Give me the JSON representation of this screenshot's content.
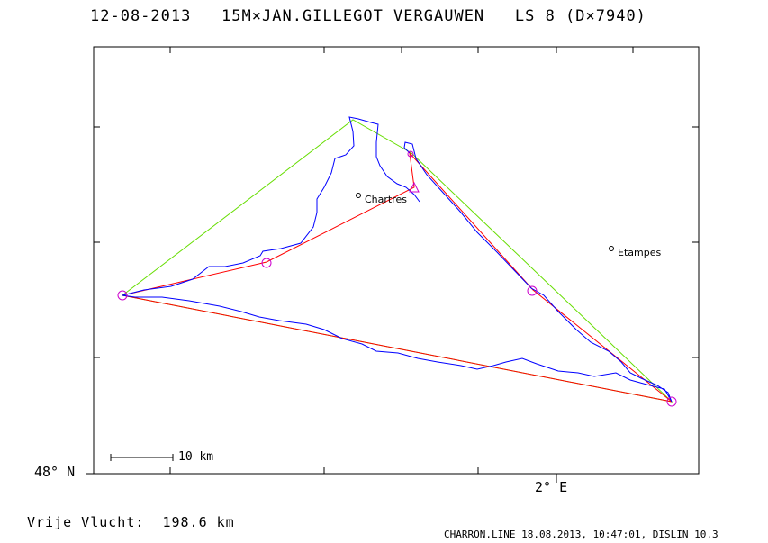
{
  "header": {
    "title": "12-08-2013   15M×JAN.GILLEGOT VERGAUWEN   LS 8 (D×7940)"
  },
  "axes": {
    "lat_label": "48° N",
    "lon_label": "2° E"
  },
  "scale_bar": {
    "label": "10 km"
  },
  "cities": [
    {
      "name": "Chartres"
    },
    {
      "name": "Etampes"
    }
  ],
  "result": {
    "distance_text": "Vrije Vlucht:  198.6 km"
  },
  "footer": {
    "text": "CHARRON.LINE 18.08.2013, 10:47:01, DISLIN 10.3"
  },
  "colors": {
    "track": "#0000ff",
    "task_line": "#ff0000",
    "triangle_line": "#66dd00",
    "turnpoint": "#cc00cc"
  }
}
